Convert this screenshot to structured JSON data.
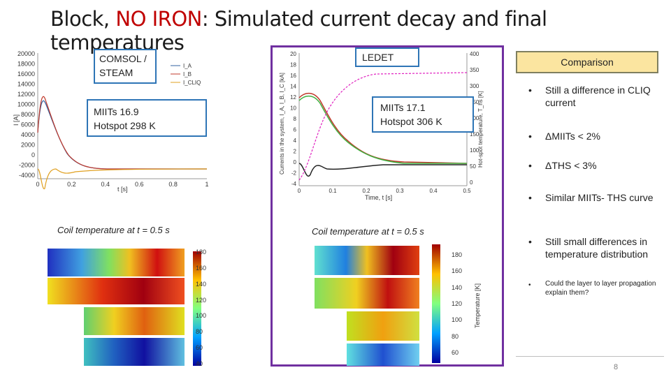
{
  "slide": {
    "title_prefix": "Block, ",
    "title_red": "NO IRON",
    "title_suffix": ": Simulated current decay and final temperatures",
    "page_number": "8"
  },
  "left_panel": {
    "label": "COMSOL / STEAM",
    "miits_box": "MIITs 16.9\nHotspot 298 K",
    "caption": "Coil temperature at t = 0.5 s",
    "legend": [
      "I_A",
      "I_B",
      "I_CLIQ"
    ],
    "y_ticks": [
      "20000",
      "18000",
      "16000",
      "14000",
      "12000",
      "10000",
      "8000",
      "6000",
      "4000",
      "2000",
      "0",
      "-2000",
      "-4000"
    ],
    "x_ticks": [
      "0",
      "0.2",
      "0.4",
      "0.6",
      "0.8",
      "1"
    ],
    "ylabel": "I [A]",
    "xlabel": "t [s]",
    "cbar_ticks": [
      "180",
      "160",
      "140",
      "120",
      "100",
      "80",
      "60",
      "40"
    ]
  },
  "right_panel": {
    "label": "LEDET",
    "miits_box": "MIITs 17.1\nHotspot 306 K",
    "caption": "Coil temperature at t = 0.5 s",
    "y_ticks": [
      "20",
      "18",
      "16",
      "14",
      "12",
      "10",
      "8",
      "6",
      "4",
      "2",
      "0",
      "-2",
      "-4"
    ],
    "y2_ticks": [
      "400",
      "350",
      "300",
      "250",
      "200",
      "150",
      "100",
      "50",
      "0"
    ],
    "x_ticks": [
      "0",
      "0.1",
      "0.2",
      "0.3",
      "0.4",
      "0.5"
    ],
    "xlabel": "Time, t [s]",
    "ylabel": "Currents in the system, I_A, I_B, I_C [kA]",
    "y2label": "Hot-spot temperature, T_hs [K]",
    "cbar_ticks": [
      "180",
      "160",
      "140",
      "120",
      "100",
      "80",
      "60"
    ],
    "cbar_label": "Temperature [K]"
  },
  "comparison": {
    "header": "Comparison",
    "bullets": [
      "Still a difference in CLIQ current",
      "ΔMIITs < 2%",
      "ΔTHS < 3%",
      "Similar MIITs- THS curve",
      "Still small differences in temperature distribution"
    ],
    "sub_bullet": "Could the layer to layer propagation explain them?"
  }
}
